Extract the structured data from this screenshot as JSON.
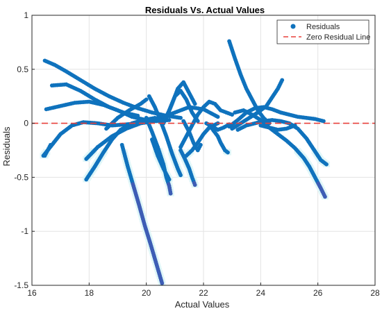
{
  "chart_data": {
    "type": "scatter",
    "title": "Residuals Vs. Actual Values",
    "xlabel": "Actual Values",
    "ylabel": "Residuals",
    "xlim": [
      16,
      28
    ],
    "ylim": [
      -1.5,
      1
    ],
    "xticks": [
      16,
      18,
      20,
      22,
      24,
      26,
      28
    ],
    "yticks": [
      -1.5,
      -1,
      -0.5,
      0,
      0.5,
      1
    ],
    "ytick_labels": [
      "-1.5",
      "-1",
      "-0.5",
      "0",
      "0.5",
      "1"
    ],
    "grid": true,
    "legend_position": "top-right",
    "legend": {
      "scatter_label": "Residuals",
      "line_label": "Zero Residual Line"
    },
    "zero_line": {
      "y": 0,
      "color": "#e8403a",
      "style": "dashed"
    },
    "marker_color": "#0f72bd",
    "highlight_color": "#dff6f8",
    "tail_color": "#3d5db5",
    "series": [
      {
        "name": "Residuals",
        "curves": [
          {
            "points": [
              [
                16.45,
                0.58
              ],
              [
                16.8,
                0.54
              ],
              [
                17.2,
                0.48
              ],
              [
                17.7,
                0.4
              ],
              [
                18.2,
                0.32
              ],
              [
                18.7,
                0.25
              ],
              [
                19.2,
                0.19
              ],
              [
                19.7,
                0.14
              ],
              [
                20.2,
                0.1
              ],
              [
                20.7,
                0.07
              ],
              [
                21.2,
                0.05
              ]
            ]
          },
          {
            "points": [
              [
                16.5,
                0.13
              ],
              [
                17.0,
                0.16
              ],
              [
                17.5,
                0.19
              ],
              [
                18.0,
                0.2
              ],
              [
                18.5,
                0.17
              ],
              [
                19.0,
                0.12
              ],
              [
                19.5,
                0.06
              ],
              [
                20.0,
                0.03
              ],
              [
                20.5,
                0.05
              ],
              [
                21.0,
                0.1
              ],
              [
                21.5,
                0.15
              ],
              [
                22.0,
                0.13
              ],
              [
                22.5,
                0.06
              ]
            ]
          },
          {
            "points": [
              [
                16.7,
                0.35
              ],
              [
                17.2,
                0.36
              ],
              [
                17.7,
                0.3
              ],
              [
                18.2,
                0.22
              ],
              [
                18.7,
                0.15
              ],
              [
                19.2,
                0.1
              ],
              [
                19.7,
                0.07
              ]
            ]
          },
          {
            "points": [
              [
                16.4,
                -0.3
              ],
              [
                16.7,
                -0.2
              ],
              [
                17.0,
                -0.1
              ],
              [
                17.4,
                -0.02
              ],
              [
                17.8,
                0.01
              ],
              [
                18.3,
                0.0
              ],
              [
                18.8,
                -0.02
              ],
              [
                19.3,
                -0.01
              ],
              [
                19.8,
                0.0
              ],
              [
                20.3,
                0.02
              ],
              [
                20.8,
                0.03
              ]
            ]
          },
          {
            "points": [
              [
                17.9,
                -0.52
              ],
              [
                18.2,
                -0.4
              ],
              [
                18.5,
                -0.27
              ],
              [
                18.8,
                -0.15
              ],
              [
                19.1,
                -0.06
              ],
              [
                19.5,
                0.0
              ],
              [
                19.9,
                0.03
              ],
              [
                20.3,
                0.05
              ]
            ]
          },
          {
            "points": [
              [
                17.9,
                -0.33
              ],
              [
                18.3,
                -0.22
              ],
              [
                18.8,
                -0.12
              ],
              [
                19.3,
                -0.05
              ],
              [
                19.8,
                0.0
              ]
            ]
          },
          {
            "points": [
              [
                18.6,
                -0.05
              ],
              [
                19.0,
                0.05
              ],
              [
                19.4,
                0.12
              ],
              [
                19.8,
                0.18
              ],
              [
                20.0,
                0.22
              ]
            ]
          },
          {
            "points": [
              [
                20.1,
                0.25
              ],
              [
                20.3,
                0.15
              ],
              [
                20.5,
                0.02
              ],
              [
                20.7,
                -0.12
              ],
              [
                20.9,
                -0.28
              ],
              [
                21.1,
                -0.42
              ],
              [
                21.2,
                -0.48
              ]
            ]
          },
          {
            "points": [
              [
                20.0,
                0.05
              ],
              [
                20.2,
                -0.08
              ],
              [
                20.4,
                -0.22
              ],
              [
                20.6,
                -0.38
              ],
              [
                20.7,
                -0.5
              ],
              [
                20.8,
                -0.58
              ],
              [
                20.85,
                -0.65
              ]
            ]
          },
          {
            "points": [
              [
                20.2,
                -0.15
              ],
              [
                20.4,
                -0.3
              ],
              [
                20.6,
                -0.42
              ],
              [
                20.8,
                -0.52
              ]
            ]
          },
          {
            "points": [
              [
                20.6,
                0.0
              ],
              [
                20.8,
                0.12
              ],
              [
                21.0,
                0.25
              ],
              [
                21.2,
                0.3
              ],
              [
                21.4,
                0.22
              ],
              [
                21.6,
                0.1
              ],
              [
                21.8,
                0.02
              ]
            ]
          },
          {
            "points": [
              [
                20.7,
                0.05
              ],
              [
                20.9,
                0.18
              ],
              [
                21.1,
                0.32
              ],
              [
                21.3,
                0.38
              ],
              [
                21.5,
                0.28
              ],
              [
                21.7,
                0.18
              ]
            ]
          },
          {
            "points": [
              [
                21.2,
                -0.22
              ],
              [
                21.4,
                -0.12
              ],
              [
                21.6,
                -0.02
              ],
              [
                21.8,
                0.08
              ],
              [
                22.0,
                0.15
              ],
              [
                22.2,
                0.2
              ],
              [
                22.4,
                0.18
              ],
              [
                22.6,
                0.12
              ],
              [
                22.8,
                0.1
              ],
              [
                23.0,
                0.08
              ]
            ]
          },
          {
            "points": [
              [
                21.4,
                -0.3
              ],
              [
                21.6,
                -0.25
              ],
              [
                21.8,
                -0.18
              ],
              [
                22.0,
                -0.1
              ],
              [
                22.2,
                -0.04
              ],
              [
                22.5,
                0.0
              ]
            ]
          },
          {
            "points": [
              [
                21.2,
                -0.25
              ],
              [
                21.35,
                -0.33
              ],
              [
                21.5,
                -0.42
              ],
              [
                21.6,
                -0.5
              ],
              [
                21.7,
                -0.57
              ]
            ]
          },
          {
            "points": [
              [
                21.3,
                0.02
              ],
              [
                21.5,
                -0.08
              ],
              [
                21.65,
                -0.18
              ],
              [
                21.8,
                -0.25
              ],
              [
                21.9,
                -0.2
              ]
            ]
          },
          {
            "points": [
              [
                22.3,
                -0.05
              ],
              [
                22.5,
                -0.12
              ],
              [
                22.6,
                -0.18
              ],
              [
                22.75,
                -0.25
              ],
              [
                22.85,
                -0.27
              ]
            ]
          },
          {
            "points": [
              [
                22.1,
                0.0
              ],
              [
                22.3,
                -0.03
              ],
              [
                22.5,
                -0.06
              ],
              [
                22.7,
                -0.04
              ],
              [
                22.9,
                -0.01
              ]
            ]
          },
          {
            "points": [
              [
                22.9,
                0.76
              ],
              [
                23.1,
                0.6
              ],
              [
                23.3,
                0.45
              ],
              [
                23.5,
                0.32
              ],
              [
                23.7,
                0.22
              ],
              [
                23.9,
                0.12
              ],
              [
                24.1,
                0.05
              ],
              [
                24.3,
                0.0
              ]
            ]
          },
          {
            "points": [
              [
                22.9,
                -0.03
              ],
              [
                23.2,
                0.03
              ],
              [
                23.5,
                0.1
              ],
              [
                23.8,
                0.14
              ],
              [
                24.1,
                0.15
              ],
              [
                24.4,
                0.13
              ],
              [
                24.7,
                0.1
              ],
              [
                25.0,
                0.08
              ],
              [
                25.3,
                0.06
              ],
              [
                25.6,
                0.05
              ],
              [
                25.9,
                0.04
              ],
              [
                26.2,
                0.02
              ]
            ]
          },
          {
            "points": [
              [
                23.0,
                -0.05
              ],
              [
                23.3,
                0.0
              ],
              [
                23.6,
                0.05
              ],
              [
                23.9,
                0.1
              ],
              [
                24.2,
                0.16
              ],
              [
                24.4,
                0.24
              ],
              [
                24.6,
                0.32
              ],
              [
                24.75,
                0.4
              ]
            ]
          },
          {
            "points": [
              [
                23.2,
                -0.06
              ],
              [
                23.5,
                -0.02
              ],
              [
                23.8,
                0.0
              ],
              [
                24.1,
                0.02
              ],
              [
                24.4,
                0.03
              ],
              [
                24.7,
                0.02
              ],
              [
                25.0,
                0.0
              ],
              [
                25.3,
                -0.05
              ],
              [
                25.6,
                -0.14
              ],
              [
                25.9,
                -0.26
              ],
              [
                26.1,
                -0.34
              ],
              [
                26.3,
                -0.38
              ]
            ]
          },
          {
            "points": [
              [
                23.1,
                0.1
              ],
              [
                23.4,
                0.12
              ],
              [
                23.7,
                0.08
              ],
              [
                24.0,
                0.03
              ],
              [
                24.3,
                -0.04
              ],
              [
                24.6,
                -0.1
              ],
              [
                24.9,
                -0.16
              ],
              [
                25.2,
                -0.23
              ],
              [
                25.5,
                -0.32
              ],
              [
                25.7,
                -0.4
              ],
              [
                25.9,
                -0.5
              ],
              [
                26.1,
                -0.6
              ],
              [
                26.25,
                -0.68
              ]
            ]
          },
          {
            "points": [
              [
                24.0,
                -0.02
              ],
              [
                24.3,
                -0.04
              ],
              [
                24.6,
                -0.06
              ],
              [
                24.9,
                -0.05
              ],
              [
                25.2,
                -0.02
              ]
            ]
          },
          {
            "points": [
              [
                19.15,
                -0.2
              ],
              [
                19.35,
                -0.4
              ],
              [
                19.55,
                -0.58
              ],
              [
                19.75,
                -0.76
              ],
              [
                19.95,
                -0.95
              ],
              [
                20.15,
                -1.12
              ],
              [
                20.35,
                -1.3
              ],
              [
                20.55,
                -1.48
              ]
            ]
          },
          {
            "points": [
              [
                16.45,
                -0.3
              ],
              [
                16.55,
                -0.25
              ],
              [
                16.65,
                -0.2
              ]
            ]
          }
        ]
      }
    ]
  }
}
